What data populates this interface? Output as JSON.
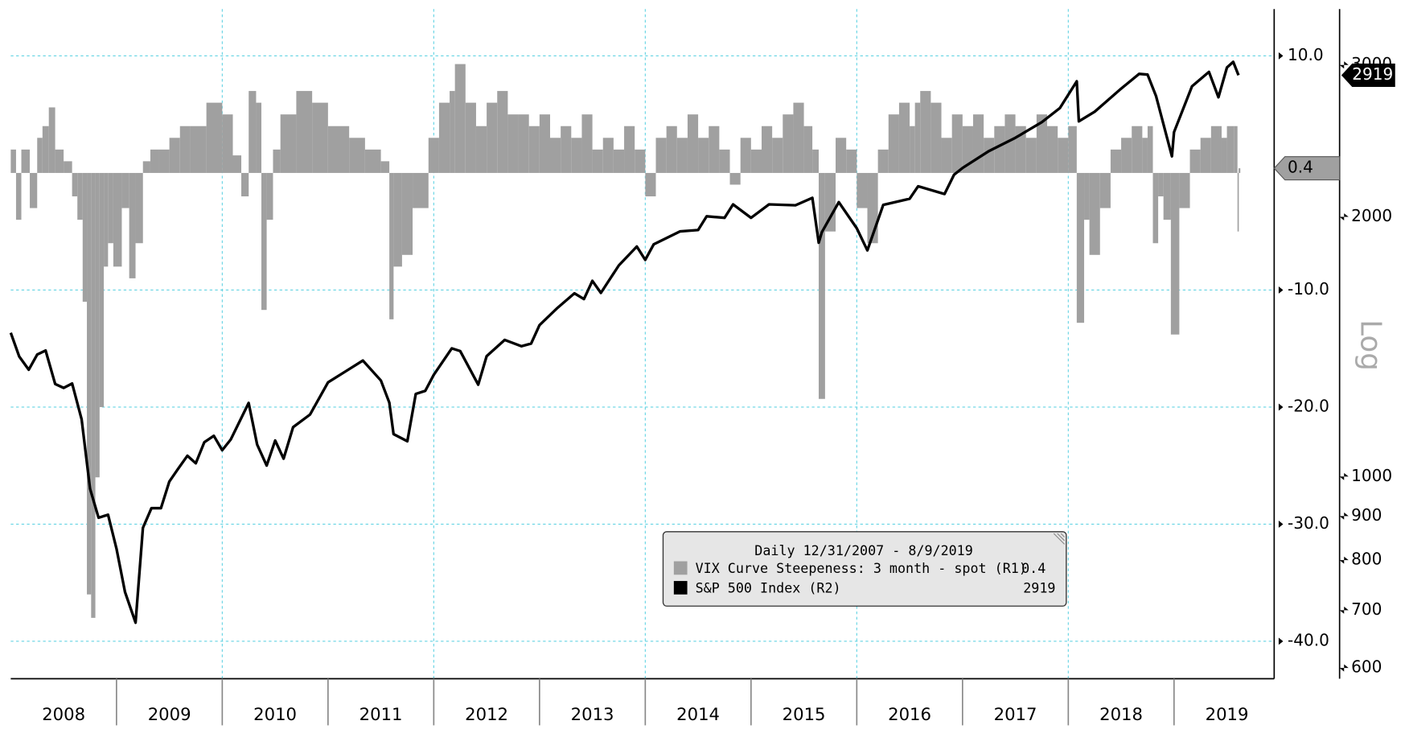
{
  "chart_data": {
    "type": "bar-line",
    "legend_title": "Daily 12/31/2007 - 8/9/2019",
    "xlim": [
      2008,
      2019.93
    ],
    "xticks": [
      {
        "value": 2008.5,
        "label": "2008"
      },
      {
        "value": 2009.5,
        "label": "2009"
      },
      {
        "value": 2010.5,
        "label": "2010"
      },
      {
        "value": 2011.5,
        "label": "2011"
      },
      {
        "value": 2012.5,
        "label": "2012"
      },
      {
        "value": 2013.5,
        "label": "2013"
      },
      {
        "value": 2014.5,
        "label": "2014"
      },
      {
        "value": 2015.5,
        "label": "2015"
      },
      {
        "value": 2016.5,
        "label": "2016"
      },
      {
        "value": 2017.5,
        "label": "2017"
      },
      {
        "value": 2018.5,
        "label": "2018"
      },
      {
        "value": 2019.5,
        "label": "2019"
      }
    ],
    "ylim": [
      -43.2,
      14
    ],
    "yticks": [
      {
        "value": 10,
        "label": "10.0"
      },
      {
        "value": -10,
        "label": "-10.0"
      },
      {
        "value": -20,
        "label": "-20.0"
      },
      {
        "value": -30,
        "label": "-30.0"
      },
      {
        "value": -40,
        "label": "-40.0"
      }
    ],
    "y2lim": [
      583,
      3483
    ],
    "y2ticks": [
      600,
      700,
      800,
      900,
      1000,
      2000,
      3000
    ],
    "y2_log": true,
    "y2_label": "Log",
    "grid": true,
    "series": [
      {
        "name": "VIX Curve Steepeness: 3 month - spot (R1)",
        "color": "#a0a0a0",
        "last_value": 0.4,
        "x": [
          2008.0,
          2008.05,
          2008.1,
          2008.18,
          2008.25,
          2008.3,
          2008.36,
          2008.42,
          2008.5,
          2008.58,
          2008.63,
          2008.68,
          2008.72,
          2008.76,
          2008.8,
          2008.84,
          2008.88,
          2008.92,
          2008.97,
          2009.05,
          2009.12,
          2009.18,
          2009.25,
          2009.32,
          2009.4,
          2009.5,
          2009.6,
          2009.7,
          2009.85,
          2010.0,
          2010.1,
          2010.18,
          2010.25,
          2010.32,
          2010.37,
          2010.42,
          2010.48,
          2010.55,
          2010.7,
          2010.85,
          2011.0,
          2011.2,
          2011.35,
          2011.5,
          2011.58,
          2011.62,
          2011.7,
          2011.8,
          2011.95,
          2012.05,
          2012.15,
          2012.2,
          2012.3,
          2012.4,
          2012.5,
          2012.6,
          2012.7,
          2012.8,
          2012.9,
          2013.0,
          2013.1,
          2013.2,
          2013.3,
          2013.4,
          2013.5,
          2013.6,
          2013.7,
          2013.8,
          2013.9,
          2014.0,
          2014.1,
          2014.2,
          2014.3,
          2014.4,
          2014.5,
          2014.6,
          2014.7,
          2014.8,
          2014.9,
          2015.0,
          2015.1,
          2015.2,
          2015.3,
          2015.4,
          2015.5,
          2015.58,
          2015.64,
          2015.7,
          2015.8,
          2015.9,
          2016.0,
          2016.1,
          2016.2,
          2016.3,
          2016.4,
          2016.5,
          2016.55,
          2016.6,
          2016.7,
          2016.8,
          2016.9,
          2017.0,
          2017.1,
          2017.2,
          2017.3,
          2017.4,
          2017.5,
          2017.6,
          2017.7,
          2017.8,
          2017.9,
          2018.0,
          2018.08,
          2018.15,
          2018.2,
          2018.3,
          2018.4,
          2018.5,
          2018.6,
          2018.7,
          2018.75,
          2018.8,
          2018.85,
          2018.9,
          2018.97,
          2019.05,
          2019.15,
          2019.25,
          2019.35,
          2019.45,
          2019.5,
          2019.57,
          2019.6,
          2019.61
        ],
        "values": [
          2,
          -4,
          2,
          -3,
          3,
          4,
          5.6,
          2,
          1,
          -2,
          -4,
          -11,
          -36,
          -38,
          -26,
          -20,
          -8,
          -6,
          -8,
          -3,
          -9,
          -6,
          1,
          2,
          2,
          3,
          4,
          4,
          6,
          5,
          1.5,
          -2,
          7,
          6,
          -11.7,
          -4,
          2,
          5,
          7,
          6,
          4,
          3,
          2,
          1,
          -12.5,
          -8,
          -7,
          -3,
          3,
          6,
          7,
          9.3,
          6,
          4,
          6,
          7,
          5,
          5,
          4,
          5,
          3,
          4,
          3,
          5,
          2,
          3,
          2,
          4,
          2,
          -2,
          3,
          4,
          3,
          5,
          3,
          4,
          2,
          -1,
          3,
          2,
          4,
          3,
          5,
          6,
          4,
          2,
          -19.3,
          -5,
          3,
          2,
          -3,
          -6,
          2,
          5,
          6,
          4,
          6,
          7,
          6,
          3,
          5,
          4,
          5,
          3,
          4,
          5,
          4,
          3,
          5,
          4,
          3,
          4,
          -12.8,
          -4,
          -7,
          -3,
          2,
          3,
          4,
          3,
          4,
          -6,
          -2,
          -4,
          -13.8,
          -3,
          2,
          3,
          4,
          3,
          4,
          4,
          -5,
          0.4
        ]
      },
      {
        "name": "S&P 500 Index (R2)",
        "color": "#000000",
        "axis": "y2",
        "last_value": 2919,
        "x": [
          2008.0,
          2008.08,
          2008.17,
          2008.25,
          2008.33,
          2008.42,
          2008.5,
          2008.58,
          2008.67,
          2008.75,
          2008.83,
          2008.92,
          2009.0,
          2009.08,
          2009.18,
          2009.25,
          2009.33,
          2009.42,
          2009.5,
          2009.58,
          2009.67,
          2009.75,
          2009.83,
          2009.92,
          2010.0,
          2010.08,
          2010.25,
          2010.33,
          2010.42,
          2010.5,
          2010.58,
          2010.67,
          2010.83,
          2011.0,
          2011.17,
          2011.33,
          2011.5,
          2011.58,
          2011.62,
          2011.75,
          2011.83,
          2011.92,
          2012.0,
          2012.17,
          2012.25,
          2012.42,
          2012.5,
          2012.67,
          2012.83,
          2012.92,
          2013.0,
          2013.17,
          2013.33,
          2013.42,
          2013.5,
          2013.58,
          2013.75,
          2013.92,
          2014.0,
          2014.08,
          2014.33,
          2014.5,
          2014.58,
          2014.75,
          2014.83,
          2015.0,
          2015.17,
          2015.42,
          2015.58,
          2015.64,
          2015.67,
          2015.83,
          2016.0,
          2016.1,
          2016.25,
          2016.5,
          2016.58,
          2016.83,
          2016.92,
          2017.0,
          2017.25,
          2017.5,
          2017.75,
          2017.92,
          2018.08,
          2018.1,
          2018.25,
          2018.5,
          2018.67,
          2018.75,
          2018.83,
          2018.98,
          2019.0,
          2019.17,
          2019.33,
          2019.42,
          2019.5,
          2019.56,
          2019.61
        ],
        "values": [
          1468,
          1378,
          1330,
          1385,
          1400,
          1280,
          1267,
          1282,
          1165,
          968,
          896,
          903,
          825,
          735,
          677,
          872,
          919,
          919,
          987,
          1020,
          1057,
          1036,
          1096,
          1115,
          1073,
          1104,
          1217,
          1089,
          1030,
          1101,
          1049,
          1141,
          1180,
          1286,
          1325,
          1363,
          1292,
          1218,
          1120,
          1099,
          1247,
          1257,
          1312,
          1408,
          1398,
          1278,
          1379,
          1440,
          1416,
          1426,
          1498,
          1569,
          1631,
          1606,
          1686,
          1633,
          1757,
          1848,
          1783,
          1859,
          1924,
          1931,
          2003,
          1995,
          2068,
          1995,
          2068,
          2063,
          2104,
          1867,
          1920,
          2080,
          1940,
          1829,
          2065,
          2099,
          2170,
          2126,
          2239,
          2279,
          2384,
          2470,
          2575,
          2674,
          2872,
          2581,
          2648,
          2816,
          2930,
          2924,
          2760,
          2351,
          2507,
          2834,
          2945,
          2752,
          2980,
          3025,
          2919
        ]
      }
    ]
  }
}
